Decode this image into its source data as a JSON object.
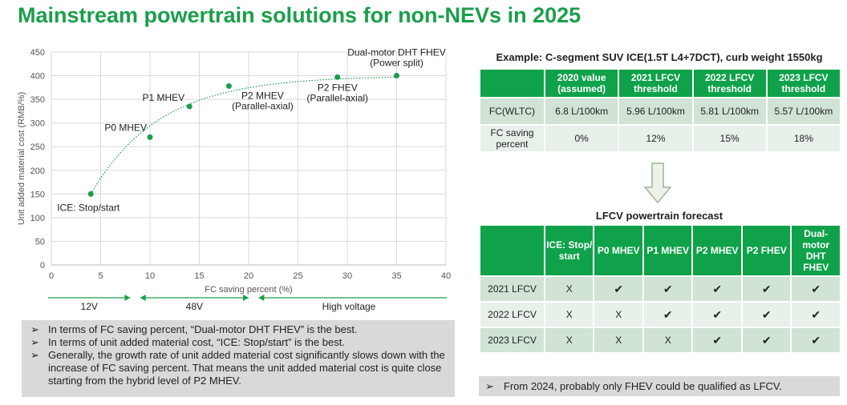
{
  "title": "Mainstream powertrain solutions for non-NEVs in 2025",
  "chart_data": {
    "type": "scatter",
    "xlabel": "FC saving percent (%)",
    "ylabel": "Unit added material cost (RMB/%)",
    "xlim": [
      0,
      40
    ],
    "ylim": [
      0,
      450
    ],
    "xticks": [
      0,
      5,
      10,
      15,
      20,
      25,
      30,
      35,
      40
    ],
    "yticks": [
      0,
      50,
      100,
      150,
      200,
      250,
      300,
      350,
      400,
      450
    ],
    "grid": true,
    "color": "#1a9e4b",
    "points": [
      {
        "x": 4,
        "y": 150,
        "label": "ICE: Stop/start"
      },
      {
        "x": 10,
        "y": 270,
        "label": "P0 MHEV"
      },
      {
        "x": 14,
        "y": 335,
        "label": "P1 MHEV"
      },
      {
        "x": 18,
        "y": 378,
        "label": "P2 MHEV",
        "label2": "(Parallel-axial)"
      },
      {
        "x": 29,
        "y": 397,
        "label": "P2 FHEV",
        "label2": "(Parallel-axial)"
      },
      {
        "x": 35,
        "y": 400,
        "label": "Dual-motor DHT FHEV",
        "label2": "(Power split)"
      }
    ],
    "voltage_ranges": [
      {
        "label": "12V",
        "from": 0,
        "to": 8
      },
      {
        "label": "48V",
        "from": 9,
        "to": 20
      },
      {
        "label": "High voltage",
        "from": 21,
        "to": 40
      }
    ]
  },
  "notes": [
    "In terms of FC saving percent, “Dual-motor DHT FHEV” is the best.",
    "In terms of unit added material cost, “ICE: Stop/start” is the best.",
    "Generally, the growth rate of unit added material cost significantly slows down with the increase of FC saving percent. That means the unit added material cost is quite close starting from the hybrid level of P2 MHEV."
  ],
  "bullet": "➢",
  "example": {
    "caption": "Example: C-segment SUV ICE(1.5T L4+7DCT), curb weight 1550kg",
    "headers": [
      "",
      "2020 value (assumed)",
      "2021 LFCV threshold",
      "2022 LFCV threshold",
      "2023 LFCV threshold"
    ],
    "rows": [
      [
        "FC(WLTC)",
        "6.8 L/100km",
        "5.96 L/100km",
        "5.81 L/100km",
        "5.57 L/100km"
      ],
      [
        "FC saving percent",
        "0%",
        "12%",
        "15%",
        "18%"
      ]
    ]
  },
  "forecast": {
    "caption": "LFCV powertrain forecast",
    "headers": [
      "",
      "ICE: Stop/ start",
      "P0 MHEV",
      "P1 MHEV",
      "P2 MHEV",
      "P2 FHEV",
      "Dual-motor DHT FHEV"
    ],
    "rows": [
      [
        "2021 LFCV",
        "X",
        "✔",
        "✔",
        "✔",
        "✔",
        "✔"
      ],
      [
        "2022 LFCV",
        "X",
        "X",
        "✔",
        "✔",
        "✔",
        "✔"
      ],
      [
        "2023 LFCV",
        "X",
        "X",
        "X",
        "✔",
        "✔",
        "✔"
      ]
    ]
  },
  "footnote": "From 2024, probably only FHEV could be qualified as LFCV."
}
